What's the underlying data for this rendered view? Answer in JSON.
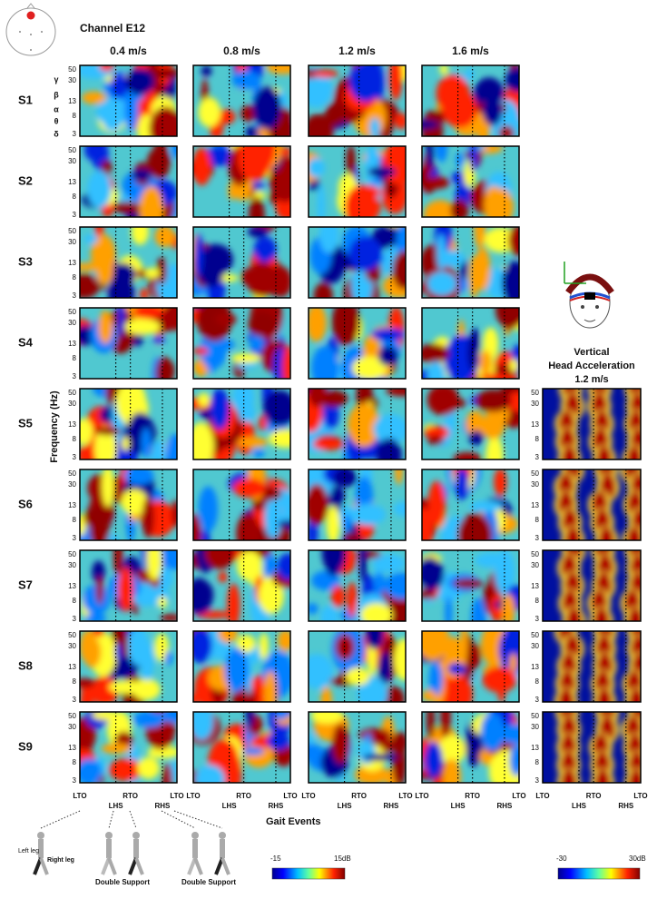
{
  "header": {
    "channel": "Channel E12"
  },
  "speeds": [
    "0.4 m/s",
    "0.8 m/s",
    "1.2 m/s",
    "1.6 m/s"
  ],
  "subjects": [
    "S1",
    "S2",
    "S3",
    "S4",
    "S5",
    "S6",
    "S7",
    "S8",
    "S9"
  ],
  "band_labels": [
    "γ",
    "β",
    "α",
    "θ",
    "δ"
  ],
  "frequency_ticks": [
    "50",
    "30",
    "13",
    "8",
    "3"
  ],
  "y_axis_label": "Frequency (Hz)",
  "gait_events": {
    "top": [
      "LTO",
      "RTO",
      "LTO"
    ],
    "bottom": [
      "LHS",
      "RHS"
    ]
  },
  "x_axis_label": "Gait Events",
  "head_acceleration": {
    "title": [
      "Vertical",
      "Head Acceleration",
      "1.2 m/s"
    ]
  },
  "legend_eeg": {
    "min": "-15",
    "max": "15dB"
  },
  "legend_acc": {
    "min": "-30",
    "max": "30dB"
  },
  "leg_labels": [
    "Left leg",
    "Right leg"
  ],
  "phase_labels": [
    "Double Support",
    "Double Support"
  ]
}
